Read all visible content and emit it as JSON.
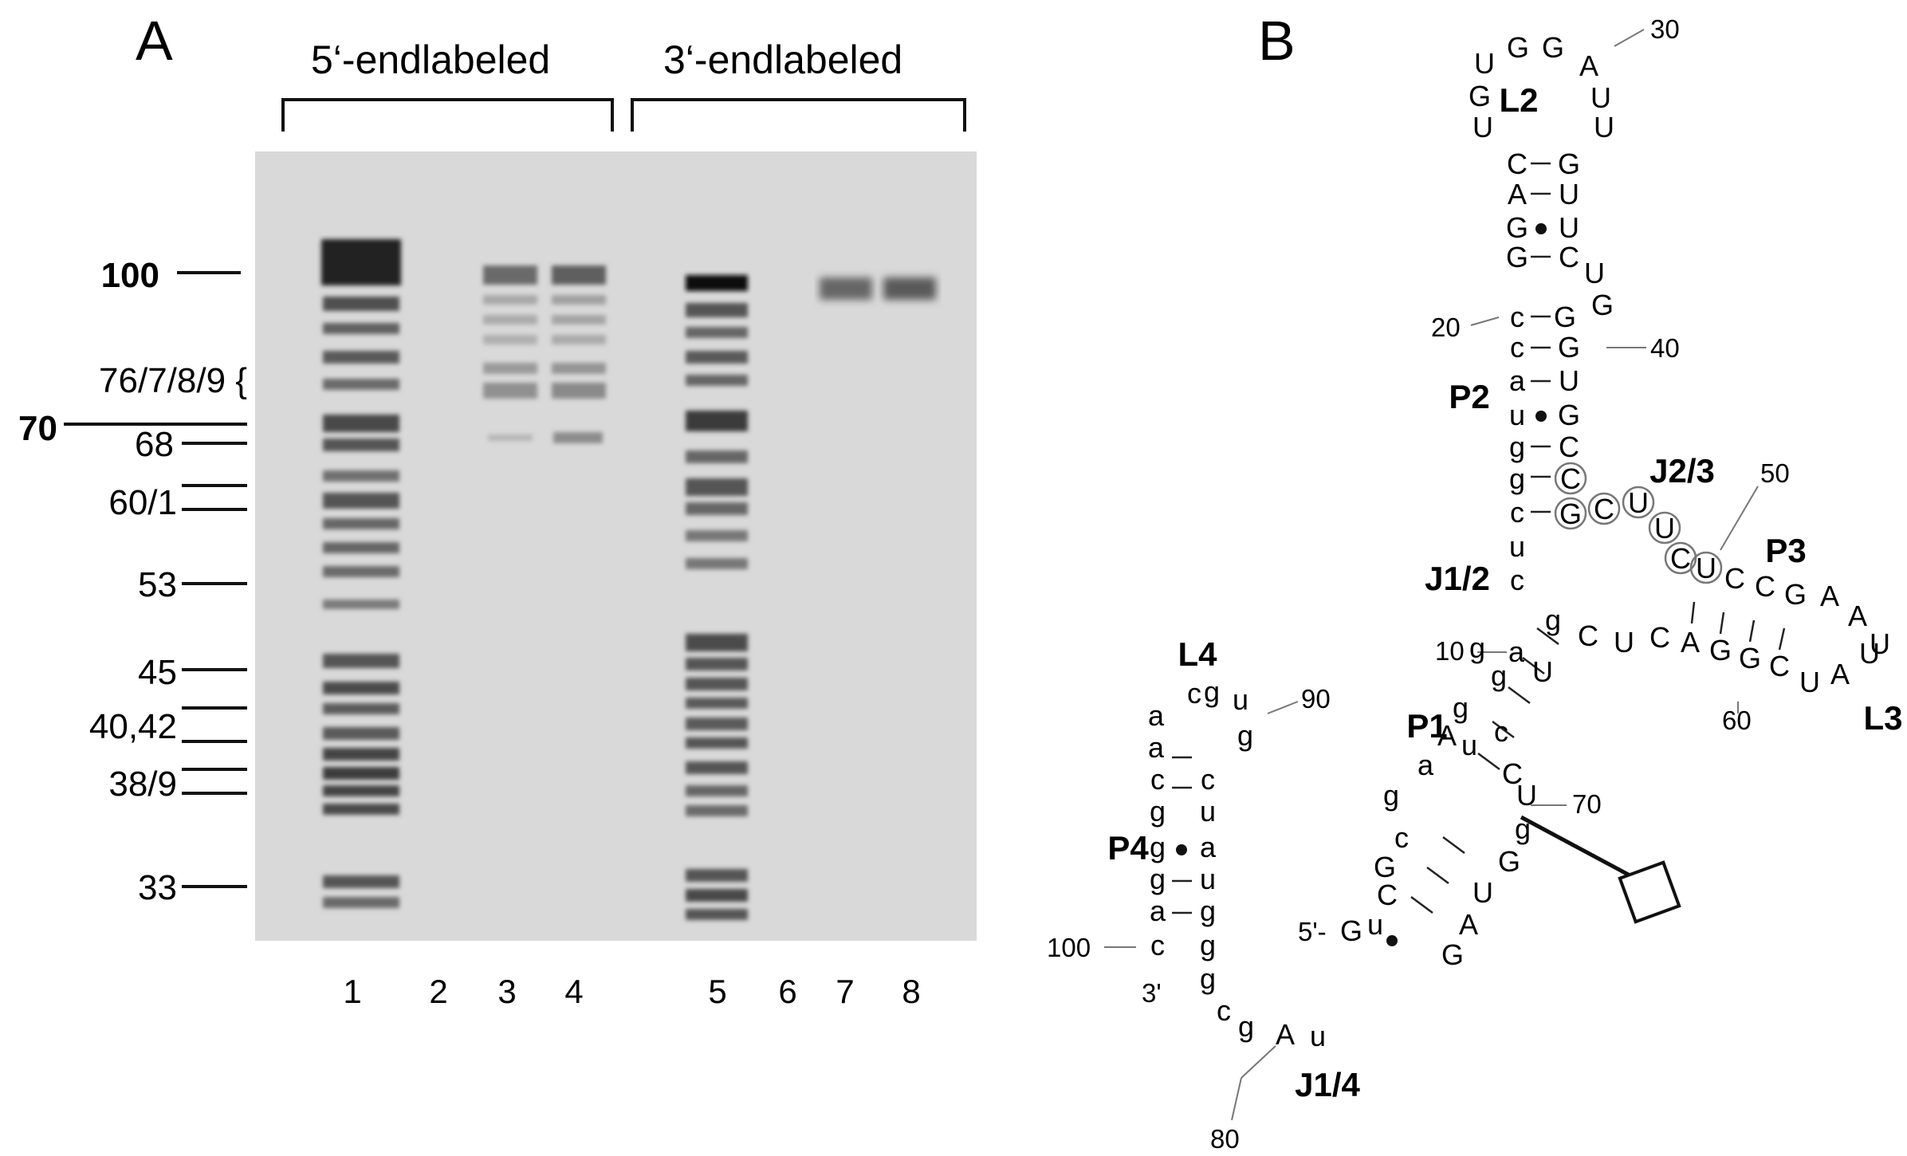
{
  "panel_a": {
    "label": "A",
    "groups": [
      {
        "label": "5‘-endlabeled"
      },
      {
        "label": "3‘-endlabeled"
      }
    ],
    "markers": [
      {
        "label": "100",
        "bold": true
      },
      {
        "label": "76/7/8/9 {",
        "bold": false
      },
      {
        "label": "70",
        "bold": true
      },
      {
        "label": "68",
        "bold": false
      },
      {
        "label": "60/1",
        "bold": false
      },
      {
        "label": "53",
        "bold": false
      },
      {
        "label": "45",
        "bold": false
      },
      {
        "label": "40,42",
        "bold": false
      },
      {
        "label": "38/9",
        "bold": false
      },
      {
        "label": "33",
        "bold": false
      }
    ],
    "lanes": [
      "1",
      "2",
      "3",
      "4",
      "5",
      "6",
      "7",
      "8"
    ]
  },
  "panel_b": {
    "label": "B",
    "regions": [
      "L2",
      "P2",
      "J2/3",
      "P3",
      "J1/2",
      "L3",
      "L4",
      "P1",
      "P4",
      "J1/4"
    ],
    "position_numbers": [
      "30",
      "20",
      "40",
      "50",
      "10",
      "60",
      "90",
      "70",
      "100",
      "80"
    ],
    "end_labels": [
      "5'-",
      "3'"
    ],
    "nucleotides": [
      "U",
      "G",
      "G",
      "A",
      "G",
      "U",
      "U",
      "U",
      "C",
      "G",
      "A",
      "U",
      "G",
      "U",
      "G",
      "C",
      "U",
      "c",
      "G",
      "G",
      "c",
      "G",
      "a",
      "U",
      "u",
      "G",
      "g",
      "C",
      "g",
      "C",
      "G",
      "C",
      "U",
      "U",
      "U",
      "C",
      "c",
      "u",
      "c",
      "C",
      "C",
      "G",
      "A",
      "A",
      "g",
      "U",
      "C",
      "U",
      "C",
      "A",
      "G",
      "G",
      "C",
      "U",
      "A",
      "U",
      "10a",
      "a",
      "c",
      "g",
      "u",
      "a",
      "a",
      "g",
      "c",
      "c",
      "g",
      "u",
      "g",
      "a",
      "g",
      "u",
      "a",
      "g",
      "c",
      "g",
      "g",
      "c",
      "g",
      "G",
      "A",
      "u",
      "u",
      "c",
      "a",
      "A",
      "g",
      "U",
      "g",
      "C",
      "g",
      "U",
      "g",
      "g",
      "C",
      "U",
      "u",
      "c",
      "A",
      "G",
      "G",
      "G"
    ]
  }
}
